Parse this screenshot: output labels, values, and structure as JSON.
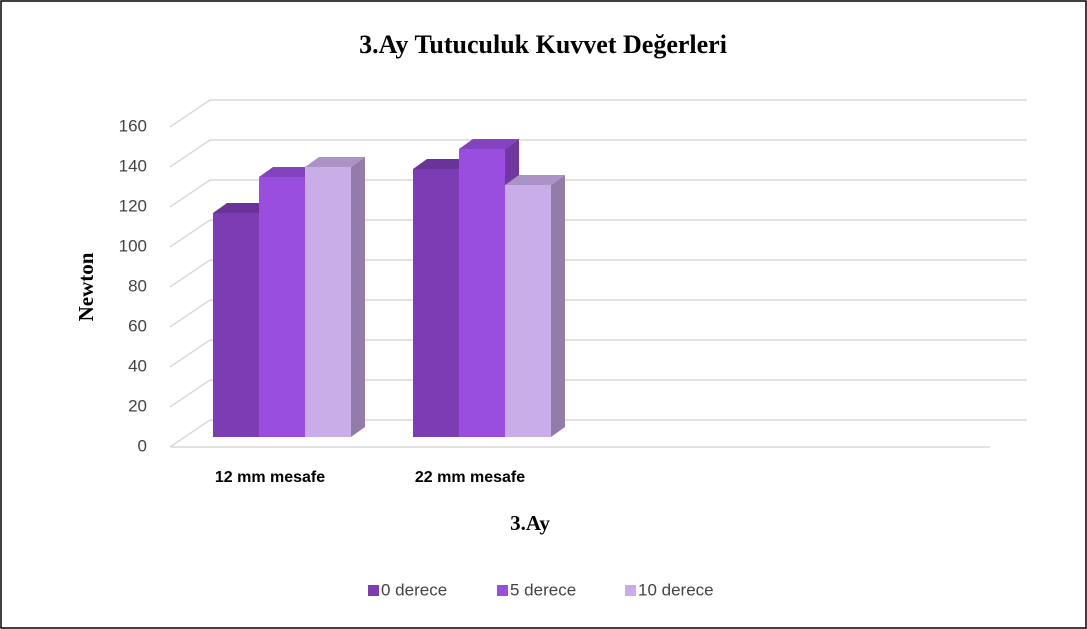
{
  "chart_data": {
    "type": "bar3d",
    "title": "3.Ay Tutuculuk Kuvvet Değerleri",
    "x_label": "3.Ay",
    "y_label": "Newton",
    "categories": [
      "12 mm mesafe",
      "22 mm mesafe"
    ],
    "series": [
      {
        "name": "0 derece",
        "color": "#7b3cb4",
        "values": [
          112,
          134
        ]
      },
      {
        "name": "5 derece",
        "color": "#9a4ee0",
        "values": [
          130,
          144
        ]
      },
      {
        "name": "10 derece",
        "color": "#c9ade8",
        "values": [
          135,
          126
        ]
      }
    ],
    "ylim": [
      0,
      160
    ],
    "yticks": [
      0,
      20,
      40,
      60,
      80,
      100,
      120,
      140,
      160
    ],
    "grid": true,
    "legend": "bottom"
  }
}
